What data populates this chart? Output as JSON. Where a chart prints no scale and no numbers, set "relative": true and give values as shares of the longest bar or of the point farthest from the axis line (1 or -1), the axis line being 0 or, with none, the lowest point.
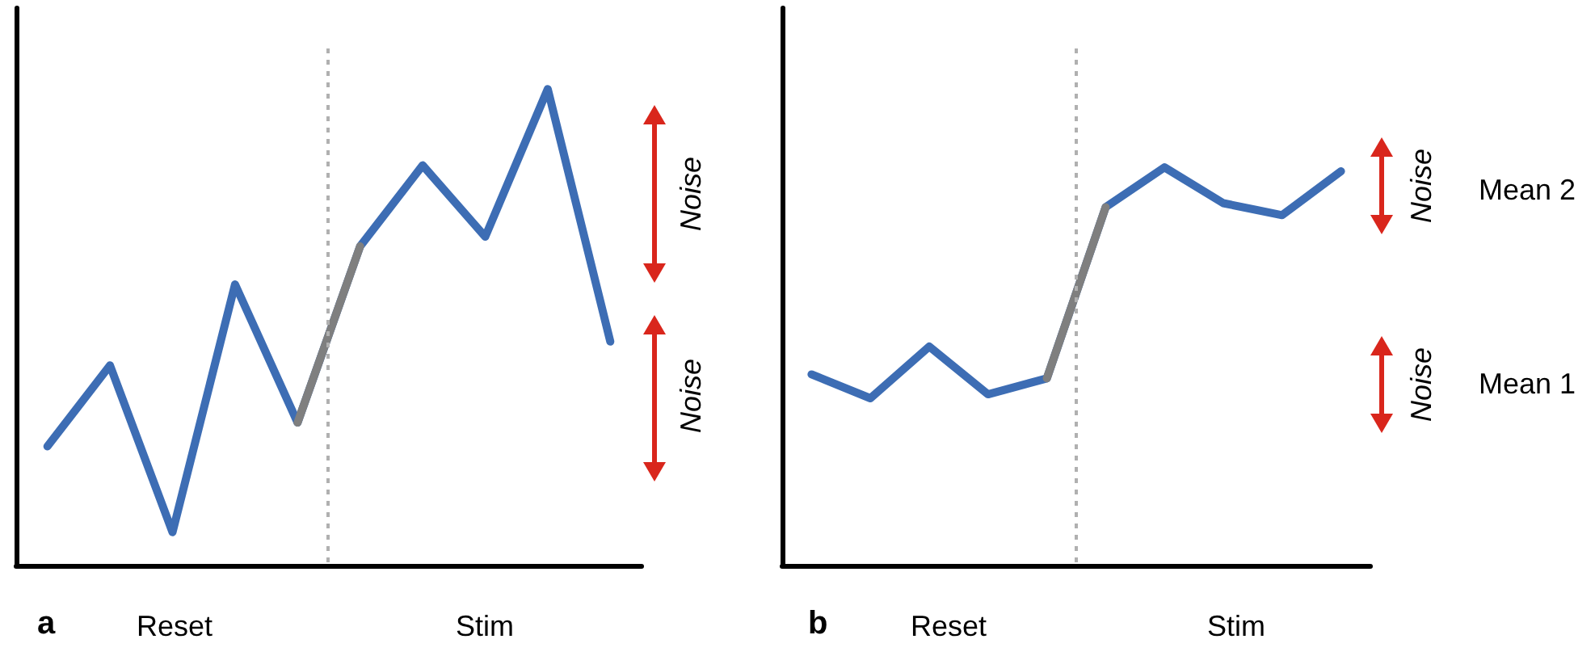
{
  "chart_data": [
    {
      "type": "line",
      "title": "a",
      "relative": true,
      "grid": false,
      "marker": "none",
      "line_style": "solid",
      "categories": [
        null,
        null,
        null,
        null,
        null,
        null,
        null,
        null,
        null,
        null
      ],
      "series": [
        {
          "color": "#3d6db4",
          "values": [
            0.25,
            0.42,
            0.07,
            0.59,
            0.3,
            0.67,
            0.84,
            0.69,
            1,
            0.47
          ]
        },
        {
          "color": "#7f7f7f",
          "values": [
            null,
            null,
            null,
            null,
            0.3,
            0.67,
            null,
            null,
            null,
            null
          ]
        }
      ],
      "annotations": [
        "Reset",
        "Stim",
        "Noise",
        "Noise"
      ]
    },
    {
      "type": "line",
      "title": "b",
      "relative": true,
      "grid": false,
      "marker": "none",
      "line_style": "solid",
      "categories": [
        null,
        null,
        null,
        null,
        null,
        null,
        null,
        null,
        null,
        null
      ],
      "series": [
        {
          "color": "#3d6db4",
          "values": [
            0.48,
            0.42,
            0.55,
            0.43,
            0.47,
            0.9,
            1,
            0.91,
            0.88,
            0.99
          ]
        },
        {
          "color": "#7f7f7f",
          "values": [
            null,
            null,
            null,
            null,
            0.47,
            0.9,
            null,
            null,
            null,
            null
          ]
        }
      ],
      "annotations": [
        "Reset",
        "Stim",
        "Noise",
        "Noise",
        "Mean 2",
        "Mean 1"
      ]
    }
  ]
}
